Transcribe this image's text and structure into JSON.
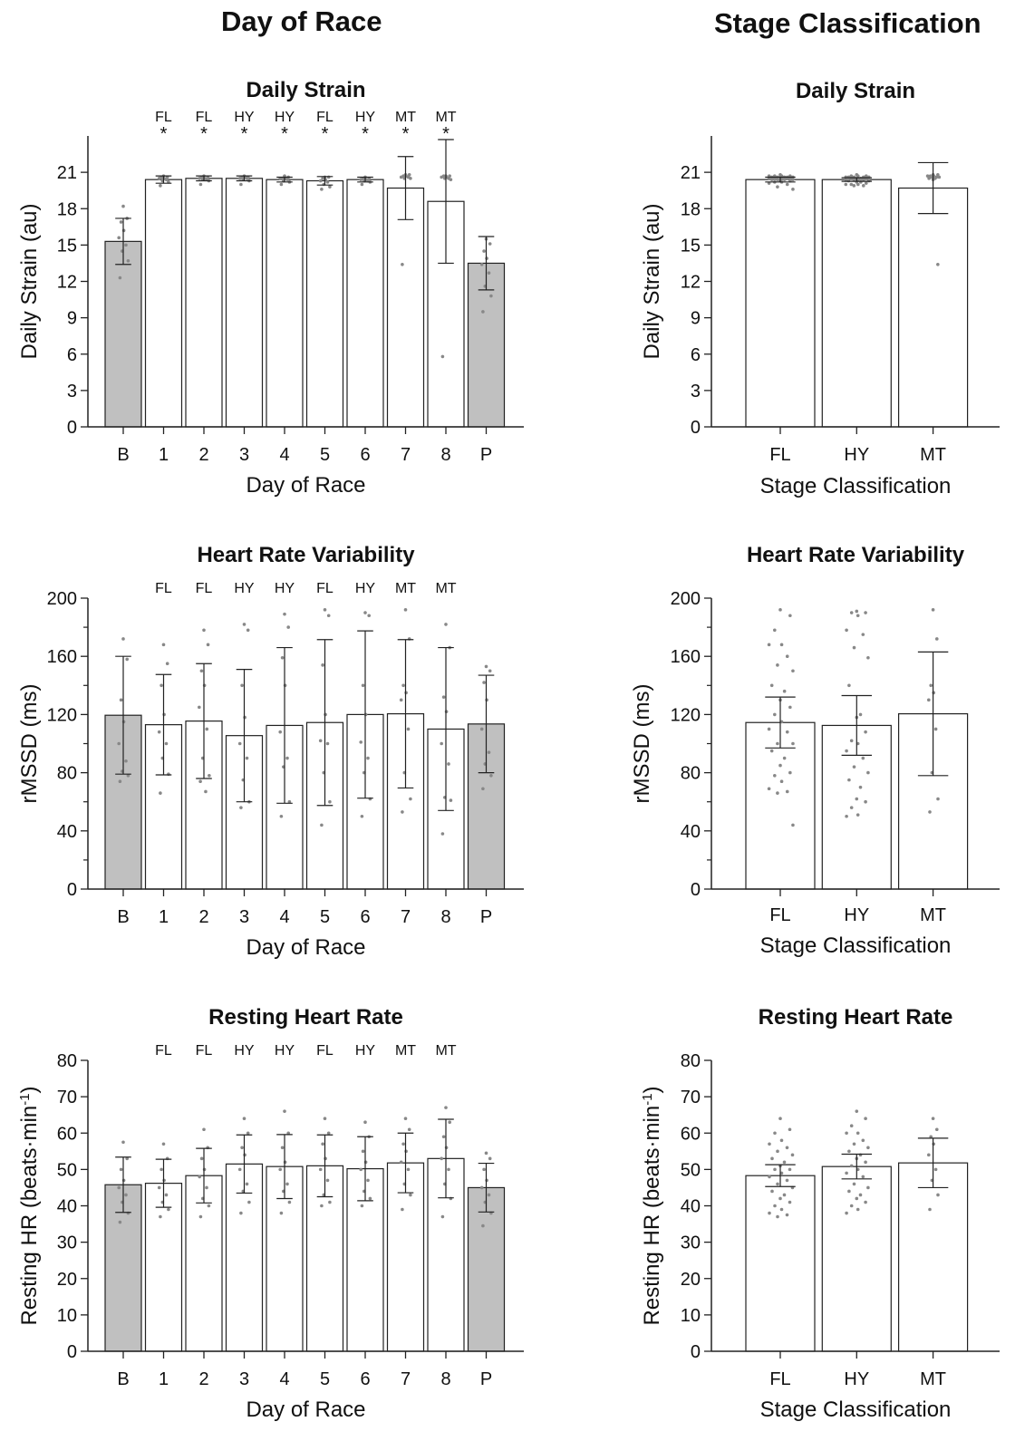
{
  "figure": {
    "left_column_title": "Day of Race",
    "right_column_title": "Stage Classification"
  },
  "colors": {
    "baseline_post_fill": "#c0c0c0",
    "race_fill": "#ffffff",
    "dot": "#888888",
    "axis": "#222222"
  },
  "chart_data": [
    {
      "id": "strain_day",
      "type": "bar",
      "title": "Daily Strain",
      "xlabel": "Day of Race",
      "ylabel": "Daily Strain (au)",
      "categories": [
        "B",
        "1",
        "2",
        "3",
        "4",
        "5",
        "6",
        "7",
        "8",
        "P"
      ],
      "stage_labels": [
        "",
        "FL",
        "FL",
        "HY",
        "HY",
        "FL",
        "HY",
        "MT",
        "MT",
        ""
      ],
      "significance": [
        "",
        "*",
        "*",
        "*",
        "*",
        "*",
        "*",
        "*",
        "*",
        ""
      ],
      "values": [
        15.3,
        20.4,
        20.5,
        20.5,
        20.4,
        20.3,
        20.4,
        19.7,
        18.6,
        13.5
      ],
      "error": [
        1.9,
        0.3,
        0.2,
        0.2,
        0.2,
        0.35,
        0.2,
        2.6,
        5.1,
        2.2
      ],
      "shaded": [
        true,
        false,
        false,
        false,
        false,
        false,
        false,
        false,
        false,
        true
      ],
      "points": [
        [
          18.2,
          17.2,
          16.9,
          16.2,
          15.6,
          15.0,
          14.5,
          13.7,
          12.3
        ],
        [
          20.7,
          20.6,
          20.6,
          20.5,
          20.5,
          20.4,
          20.3,
          20.2,
          19.9
        ],
        [
          20.7,
          20.6,
          20.6,
          20.5,
          20.5,
          20.4,
          20.4,
          20.3,
          20.0
        ],
        [
          20.7,
          20.6,
          20.6,
          20.6,
          20.5,
          20.5,
          20.4,
          20.3,
          20.0
        ],
        [
          20.7,
          20.6,
          20.5,
          20.5,
          20.5,
          20.4,
          20.3,
          20.2,
          20.0
        ],
        [
          20.6,
          20.6,
          20.5,
          20.4,
          20.3,
          20.2,
          20.0,
          19.8,
          19.6
        ],
        [
          20.6,
          20.5,
          20.5,
          20.4,
          20.4,
          20.3,
          20.3,
          20.2,
          20.0
        ],
        [
          20.8,
          20.8,
          20.7,
          20.7,
          20.6,
          20.6,
          20.5,
          20.5,
          13.4
        ],
        [
          20.7,
          20.7,
          20.7,
          20.6,
          20.6,
          20.5,
          20.5,
          20.4,
          5.8
        ],
        [
          15.5,
          15.1,
          14.5,
          13.9,
          13.4,
          12.7,
          11.6,
          10.8,
          9.5
        ]
      ],
      "ylim": [
        0,
        24
      ],
      "yticks": [
        0,
        3,
        6,
        9,
        12,
        15,
        18,
        21
      ],
      "minor_yticks": [],
      "ytick_labels": [
        "0",
        "3",
        "6",
        "9",
        "12",
        "15",
        "18",
        "21"
      ]
    },
    {
      "id": "strain_stage",
      "type": "bar",
      "title": "Daily Strain",
      "xlabel": "Stage Classification",
      "ylabel": "Daily Strain (au)",
      "categories": [
        "FL",
        "HY",
        "MT"
      ],
      "values": [
        20.4,
        20.4,
        19.7
      ],
      "error": [
        0.2,
        0.15,
        2.1
      ],
      "shaded": [
        false,
        false,
        false
      ],
      "points": [
        [
          20.8,
          20.7,
          20.7,
          20.7,
          20.7,
          20.6,
          20.6,
          20.6,
          20.6,
          20.6,
          20.6,
          20.5,
          20.5,
          20.5,
          20.5,
          20.5,
          20.4,
          20.4,
          20.4,
          20.4,
          20.3,
          20.3,
          20.2,
          20.2,
          20.1,
          20.0,
          19.8,
          19.6
        ],
        [
          20.8,
          20.7,
          20.7,
          20.7,
          20.6,
          20.6,
          20.6,
          20.6,
          20.6,
          20.5,
          20.5,
          20.5,
          20.5,
          20.4,
          20.4,
          20.4,
          20.4,
          20.3,
          20.3,
          20.2,
          20.2,
          20.1,
          20.0,
          20.0,
          20.0,
          19.9,
          19.9
        ],
        [
          20.8,
          20.8,
          20.7,
          20.7,
          20.7,
          20.6,
          20.6,
          20.6,
          20.5,
          20.5,
          20.4,
          13.4
        ]
      ],
      "ylim": [
        0,
        24
      ],
      "yticks": [
        0,
        3,
        6,
        9,
        12,
        15,
        18,
        21
      ],
      "minor_yticks": [],
      "ytick_labels": [
        "0",
        "3",
        "6",
        "9",
        "12",
        "15",
        "18",
        "21"
      ]
    },
    {
      "id": "hrv_day",
      "type": "bar",
      "title": "Heart Rate Variability",
      "xlabel": "Day of Race",
      "ylabel": "rMSSD (ms)",
      "categories": [
        "B",
        "1",
        "2",
        "3",
        "4",
        "5",
        "6",
        "7",
        "8",
        "P"
      ],
      "stage_labels": [
        "",
        "FL",
        "FL",
        "HY",
        "HY",
        "FL",
        "HY",
        "MT",
        "MT",
        ""
      ],
      "significance": [
        "",
        "",
        "",
        "",
        "",
        "",
        "",
        "",
        "",
        ""
      ],
      "values": [
        119.5,
        113.0,
        115.5,
        105.5,
        112.5,
        114.5,
        120.0,
        120.5,
        110.0,
        113.5
      ],
      "error": [
        40.5,
        34.5,
        39.5,
        45.5,
        53.5,
        57.0,
        57.5,
        51.0,
        56.0,
        33.5
      ],
      "shaded": [
        true,
        false,
        false,
        false,
        false,
        false,
        false,
        false,
        false,
        true
      ],
      "points": [
        [
          172,
          158,
          130,
          115,
          100,
          88,
          81,
          78,
          74
        ],
        [
          168,
          155,
          140,
          120,
          108,
          100,
          90,
          79,
          66
        ],
        [
          178,
          168,
          150,
          140,
          125,
          110,
          90,
          78,
          74,
          67
        ],
        [
          182,
          178,
          140,
          118,
          100,
          90,
          75,
          60,
          56
        ],
        [
          189,
          180,
          159,
          140,
          108,
          90,
          84,
          60,
          50
        ],
        [
          192,
          188,
          154,
          120,
          102,
          100,
          80,
          60,
          44
        ],
        [
          190,
          188,
          140,
          120,
          101,
          90,
          80,
          62,
          50
        ],
        [
          192,
          172,
          140,
          135,
          130,
          110,
          80,
          62,
          53
        ],
        [
          182,
          166,
          132,
          122,
          100,
          86,
          63,
          61,
          38
        ],
        [
          153,
          150,
          142,
          130,
          110,
          94,
          86,
          78,
          69
        ]
      ],
      "ylim": [
        0,
        200
      ],
      "yticks": [
        0,
        40,
        80,
        120,
        160,
        200
      ],
      "minor_yticks": [
        20,
        60,
        100,
        140,
        180
      ],
      "ytick_labels": [
        "0",
        "40",
        "80",
        "120",
        "160",
        "200"
      ]
    },
    {
      "id": "hrv_stage",
      "type": "bar",
      "title": "Heart Rate Variability",
      "xlabel": "Stage Classification",
      "ylabel": "rMSSD (ms)",
      "categories": [
        "FL",
        "HY",
        "MT"
      ],
      "values": [
        114.5,
        112.5,
        120.5
      ],
      "error": [
        17.5,
        20.5,
        42.5
      ],
      "shaded": [
        false,
        false,
        false
      ],
      "points": [
        [
          192,
          188,
          178,
          168,
          168,
          160,
          154,
          150,
          140,
          136,
          130,
          125,
          120,
          115,
          110,
          108,
          100,
          100,
          95,
          90,
          85,
          80,
          78,
          74,
          69,
          67,
          66,
          44
        ],
        [
          191,
          190,
          190,
          188,
          178,
          175,
          166,
          159,
          140,
          120,
          118,
          108,
          102,
          100,
          95,
          90,
          84,
          80,
          75,
          70,
          62,
          60,
          56,
          51,
          50
        ],
        [
          192,
          172,
          140,
          135,
          130,
          110,
          80,
          62,
          53
        ]
      ],
      "ylim": [
        0,
        200
      ],
      "yticks": [
        0,
        40,
        80,
        120,
        160,
        200
      ],
      "minor_yticks": [
        20,
        60,
        100,
        140,
        180
      ],
      "ytick_labels": [
        "0",
        "40",
        "80",
        "120",
        "160",
        "200"
      ]
    },
    {
      "id": "rhr_day",
      "type": "bar",
      "title": "Resting Heart Rate",
      "xlabel": "Day of Race",
      "ylabel": "Resting HR (beats·min",
      "ylabel_sup": "-1",
      "ylabel_end": ")",
      "categories": [
        "B",
        "1",
        "2",
        "3",
        "4",
        "5",
        "6",
        "7",
        "8",
        "P"
      ],
      "stage_labels": [
        "",
        "FL",
        "FL",
        "HY",
        "HY",
        "FL",
        "HY",
        "MT",
        "MT",
        ""
      ],
      "significance": [
        "",
        "",
        "",
        "",
        "",
        "",
        "",
        "",
        "",
        ""
      ],
      "values": [
        45.8,
        46.2,
        48.3,
        51.5,
        50.8,
        51.0,
        50.2,
        51.8,
        53.0,
        45.0
      ],
      "error": [
        7.6,
        6.6,
        7.5,
        8.0,
        8.8,
        8.5,
        8.8,
        8.2,
        10.8,
        6.7
      ],
      "shaded": [
        true,
        false,
        false,
        false,
        false,
        false,
        false,
        false,
        false,
        true
      ],
      "points": [
        [
          57.5,
          53,
          50,
          47,
          45,
          43,
          41,
          38,
          35.5
        ],
        [
          57,
          53,
          50,
          47,
          45,
          43,
          41,
          39,
          37
        ],
        [
          61,
          56,
          53,
          50,
          48,
          45,
          42,
          40,
          37
        ],
        [
          64,
          60,
          56,
          54,
          50,
          46,
          44,
          41,
          38
        ],
        [
          66,
          60,
          56,
          52,
          50,
          46,
          44,
          41,
          38
        ],
        [
          64,
          60,
          57,
          53,
          50,
          47,
          43,
          41,
          40
        ],
        [
          63,
          59,
          55,
          52,
          50,
          47,
          44,
          42,
          40
        ],
        [
          64,
          61,
          57,
          55,
          52,
          50,
          46,
          43,
          39
        ],
        [
          67,
          63,
          59,
          56,
          53,
          50,
          46,
          42,
          37
        ],
        [
          54.5,
          53,
          50,
          47,
          45,
          43,
          41,
          38,
          34.5
        ]
      ],
      "ylim": [
        0,
        80
      ],
      "yticks": [
        0,
        10,
        20,
        30,
        40,
        50,
        60,
        70,
        80
      ],
      "minor_yticks": [],
      "ytick_labels": [
        "0",
        "10",
        "20",
        "30",
        "40",
        "50",
        "60",
        "70",
        "80"
      ]
    },
    {
      "id": "rhr_stage",
      "type": "bar",
      "title": "Resting Heart Rate",
      "xlabel": "Stage Classification",
      "ylabel": "Resting HR (beats·min",
      "ylabel_sup": "-1",
      "ylabel_end": ")",
      "categories": [
        "FL",
        "HY",
        "MT"
      ],
      "values": [
        48.3,
        50.8,
        51.8
      ],
      "error": [
        3.0,
        3.4,
        6.8
      ],
      "shaded": [
        false,
        false,
        false
      ],
      "points": [
        [
          64,
          61,
          60,
          58,
          57,
          56,
          55,
          54,
          53,
          52,
          51,
          50,
          50,
          49,
          48,
          47,
          46,
          45,
          44,
          43,
          42,
          41,
          40,
          39,
          38,
          37.5,
          37
        ],
        [
          66,
          64,
          62,
          60,
          60,
          58,
          57,
          56,
          55,
          54,
          53,
          52,
          51,
          50,
          49,
          48,
          46,
          45,
          44,
          43,
          42,
          41,
          40,
          39,
          38
        ],
        [
          64,
          61,
          59,
          57,
          54,
          50,
          47,
          43,
          39
        ]
      ],
      "ylim": [
        0,
        80
      ],
      "yticks": [
        0,
        10,
        20,
        30,
        40,
        50,
        60,
        70,
        80
      ],
      "minor_yticks": [],
      "ytick_labels": [
        "0",
        "10",
        "20",
        "30",
        "40",
        "50",
        "60",
        "70",
        "80"
      ]
    }
  ]
}
